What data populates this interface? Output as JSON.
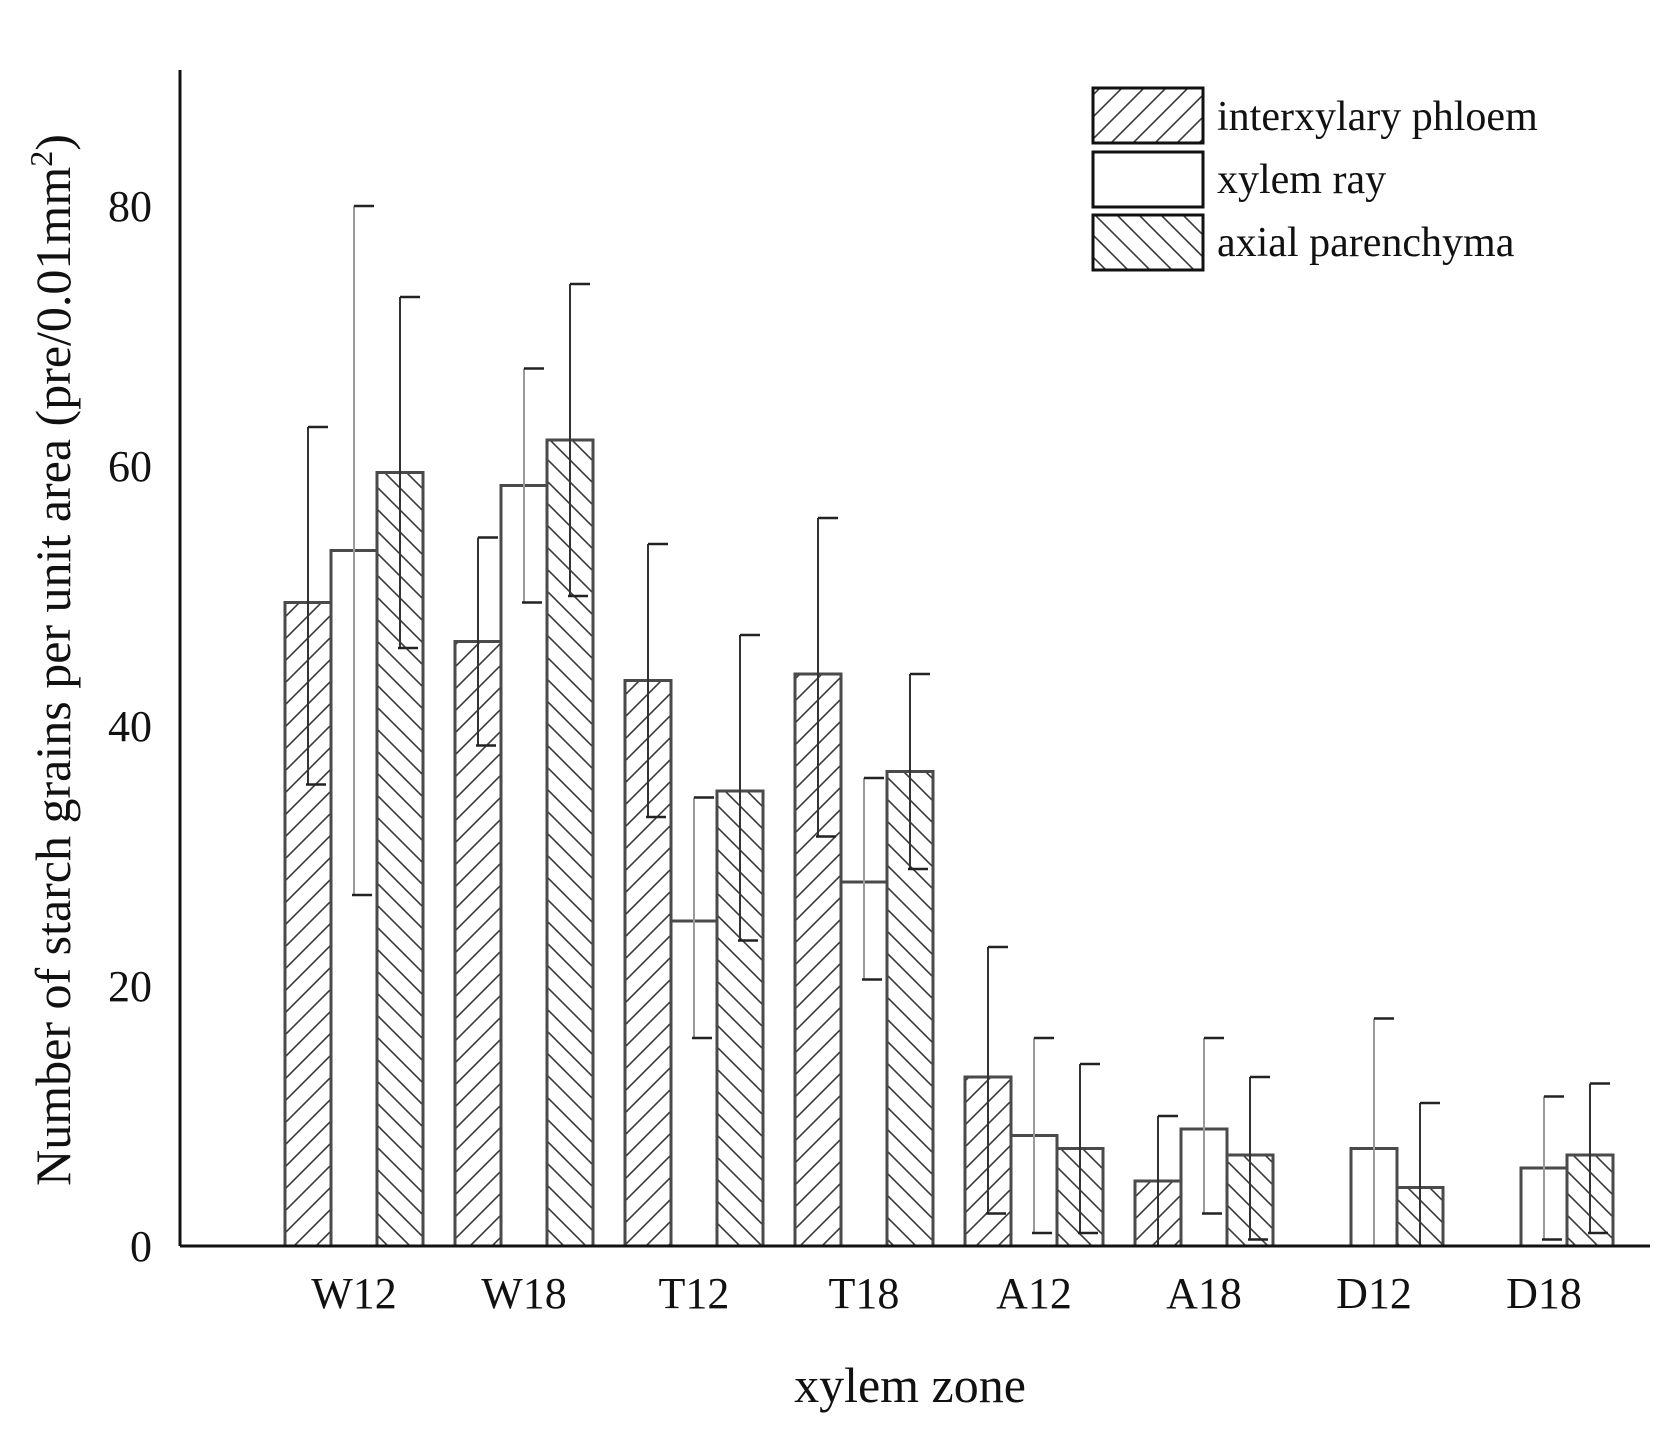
{
  "chart_data": {
    "type": "bar",
    "title": "",
    "xlabel": "xylem zone",
    "ylabel": "Number of starch grains per unit area (pre/0.01mm",
    "ylabel_superscript": "2",
    "ylabel_close": ")",
    "ylim": [
      0,
      90
    ],
    "yticks": [
      0,
      20,
      40,
      60,
      80
    ],
    "ytick_labels": [
      "0",
      "20",
      "40",
      "60",
      "80"
    ],
    "grid": false,
    "legend_position": "top-right",
    "categories": [
      "W12",
      "W18",
      "T12",
      "T18",
      "A12",
      "A18",
      "D12",
      "D18"
    ],
    "series": [
      {
        "name": "interxylary phloem",
        "pattern": "forward-hatch",
        "values": [
          49.5,
          46.5,
          43.5,
          44,
          13,
          5,
          0,
          0
        ],
        "err_low": [
          35.5,
          38.5,
          33,
          31.5,
          2.5,
          0,
          0,
          0
        ],
        "err_high": [
          63,
          54.5,
          54,
          56,
          23,
          10,
          0,
          0
        ]
      },
      {
        "name": "xylem ray",
        "pattern": "none",
        "values": [
          53.5,
          58.5,
          25,
          28,
          8.5,
          9,
          7.5,
          6
        ],
        "err_low": [
          27,
          49.5,
          16,
          20.5,
          1,
          2.5,
          0,
          0.5
        ],
        "err_high": [
          80,
          67.5,
          34.5,
          36,
          16,
          16,
          17.5,
          11.5
        ]
      },
      {
        "name": "axial parenchyma",
        "pattern": "back-hatch",
        "values": [
          59.5,
          62,
          35,
          36.5,
          7.5,
          7,
          4.5,
          7
        ],
        "err_low": [
          46,
          50,
          23.5,
          29,
          1,
          0.5,
          0,
          1
        ],
        "err_high": [
          73,
          74,
          47,
          44,
          14,
          13,
          11,
          12.5
        ]
      }
    ]
  }
}
